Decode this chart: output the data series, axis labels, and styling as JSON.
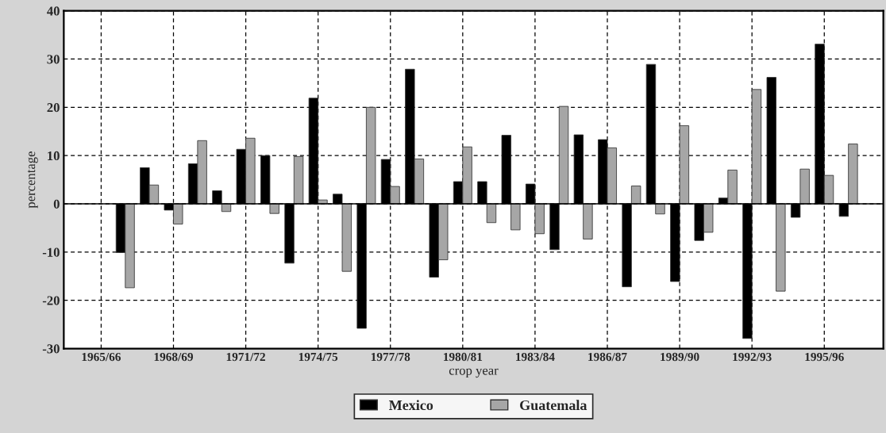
{
  "chart_data": {
    "type": "bar",
    "xlabel": "crop year",
    "ylabel": "percentage",
    "categories": [
      "1965/66",
      null,
      null,
      "1968/69",
      null,
      null,
      "1971/72",
      null,
      null,
      "1974/75",
      null,
      null,
      "1977/78",
      null,
      null,
      "1980/81",
      null,
      null,
      "1983/84",
      null,
      null,
      "1986/87",
      null,
      null,
      "1989/90",
      null,
      null,
      "1992/93",
      null,
      null,
      "1995/96",
      null
    ],
    "series": [
      {
        "name": "Mexico",
        "color": "#000000",
        "values": [
          null,
          -10.1,
          7.5,
          -1.3,
          8.3,
          2.7,
          11.3,
          10.0,
          -12.3,
          21.9,
          2.0,
          -25.8,
          9.2,
          27.9,
          -15.2,
          4.6,
          4.6,
          14.2,
          4.1,
          -9.5,
          14.3,
          13.3,
          -17.2,
          28.9,
          -16.1,
          -7.6,
          1.2,
          -27.9,
          26.2,
          -2.8,
          33.1,
          -2.6
        ]
      },
      {
        "name": "Guatemala",
        "color": "#a6a6a6",
        "values": [
          null,
          -17.4,
          3.9,
          -4.2,
          13.1,
          -1.6,
          13.6,
          -2.0,
          9.8,
          0.8,
          -14.0,
          20.0,
          3.6,
          9.3,
          -11.6,
          11.8,
          -3.9,
          -5.4,
          -6.2,
          20.2,
          -7.3,
          11.6,
          3.7,
          -2.1,
          16.2,
          -5.9,
          7.0,
          23.7,
          -18.1,
          7.2,
          5.9,
          12.4
        ]
      }
    ],
    "ylim": [
      -30,
      40
    ],
    "yticks": [
      -30,
      -20,
      -10,
      0,
      10,
      20,
      30,
      40
    ],
    "grid": true,
    "legend": "bottom"
  }
}
